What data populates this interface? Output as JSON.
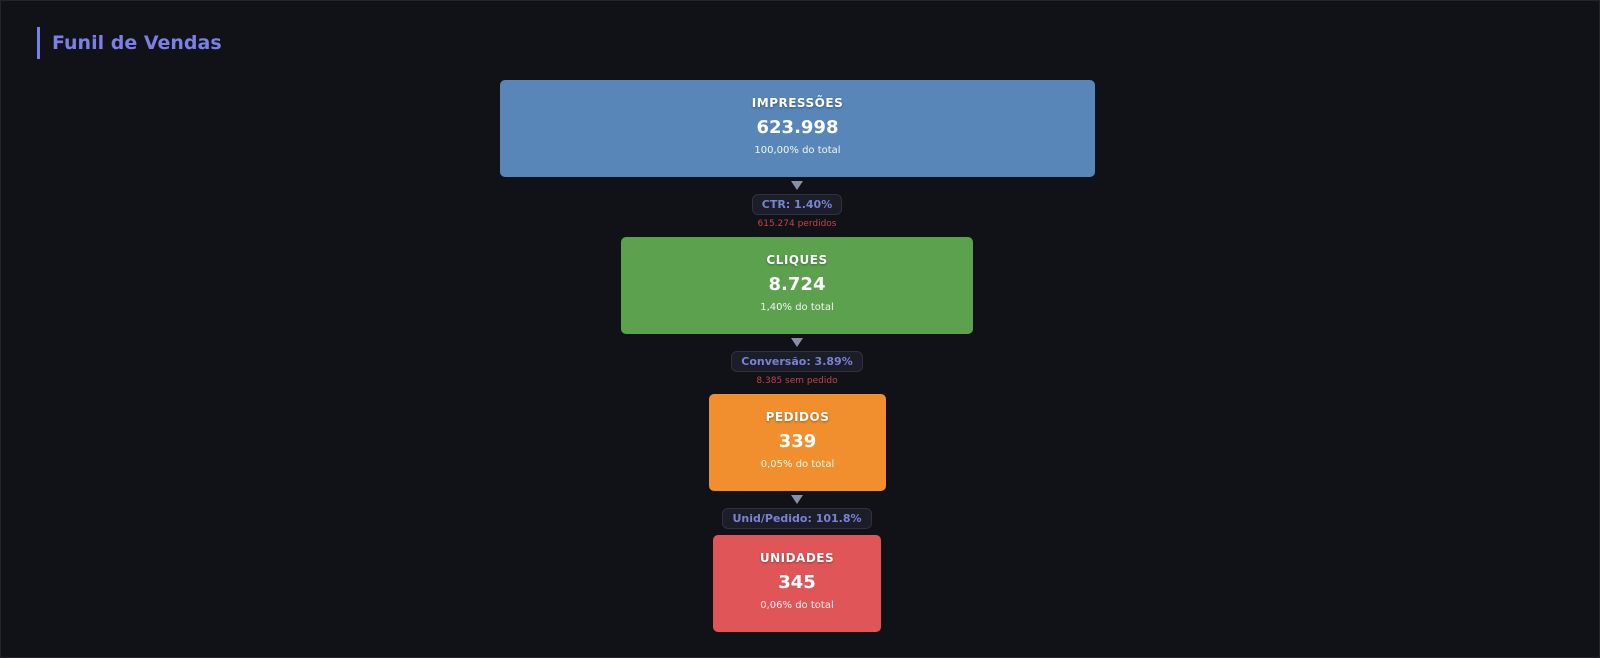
{
  "header": {
    "title": "Funil de Vendas"
  },
  "stages": [
    {
      "label": "IMPRESSÕES",
      "value": "623.998",
      "share": "100,00% do total"
    },
    {
      "label": "CLIQUES",
      "value": "8.724",
      "share": "1,40% do total"
    },
    {
      "label": "PEDIDOS",
      "value": "339",
      "share": "0,05% do total"
    },
    {
      "label": "UNIDADES",
      "value": "345",
      "share": "0,06% do total"
    }
  ],
  "connectors": [
    {
      "rate": "CTR: 1.40%",
      "lost": "615.274 perdidos"
    },
    {
      "rate": "Conversão: 3.89%",
      "lost": "8.385 sem pedido"
    },
    {
      "rate": "Unid/Pedido: 101.8%"
    }
  ]
}
